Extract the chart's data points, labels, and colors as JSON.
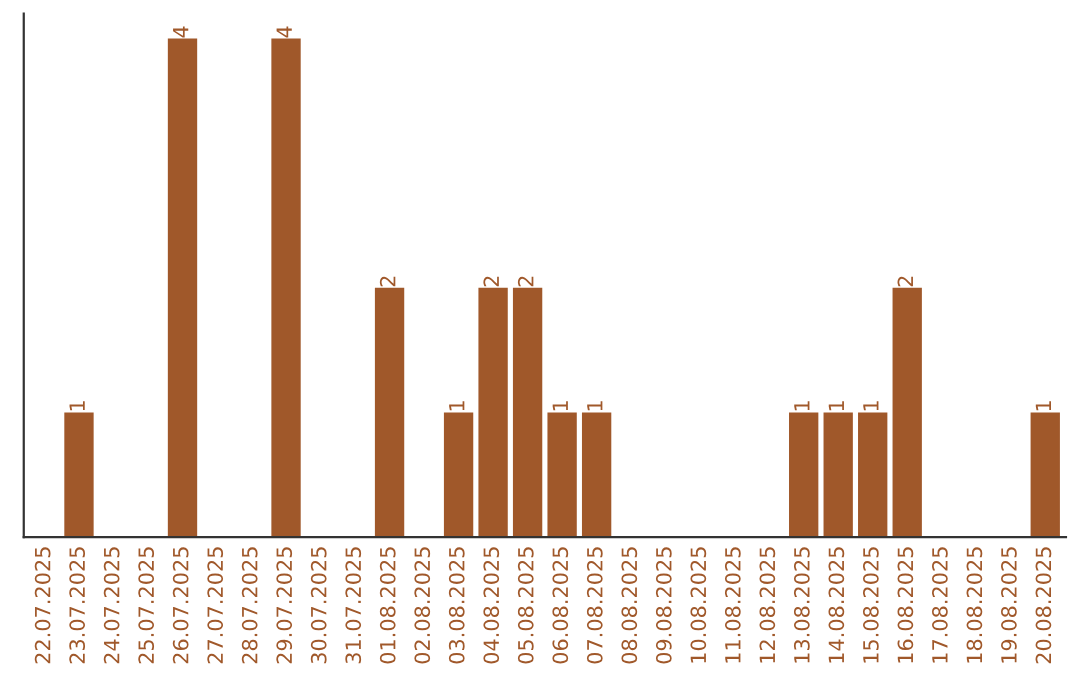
{
  "chart_data": {
    "type": "bar",
    "categories": [
      "22.07.2025",
      "23.07.2025",
      "24.07.2025",
      "25.07.2025",
      "26.07.2025",
      "27.07.2025",
      "28.07.2025",
      "29.07.2025",
      "30.07.2025",
      "31.07.2025",
      "01.08.2025",
      "02.08.2025",
      "03.08.2025",
      "04.08.2025",
      "05.08.2025",
      "06.08.2025",
      "07.08.2025",
      "08.08.2025",
      "09.08.2025",
      "10.08.2025",
      "11.08.2025",
      "12.08.2025",
      "13.08.2025",
      "14.08.2025",
      "15.08.2025",
      "16.08.2025",
      "17.08.2025",
      "18.08.2025",
      "19.08.2025",
      "20.08.2025"
    ],
    "values": [
      0,
      1,
      0,
      0,
      4,
      0,
      0,
      4,
      0,
      0,
      2,
      0,
      1,
      2,
      2,
      1,
      1,
      0,
      0,
      0,
      0,
      0,
      1,
      1,
      1,
      2,
      0,
      0,
      0,
      1
    ],
    "value_labels": [
      null,
      "1",
      null,
      null,
      "4",
      null,
      null,
      "4",
      null,
      null,
      "2",
      null,
      "1",
      "2",
      "2",
      "1",
      "1",
      null,
      null,
      null,
      null,
      null,
      "1",
      "1",
      "1",
      "2",
      null,
      null,
      null,
      "1"
    ],
    "color": "#a0582a",
    "ylim": [
      0,
      4.2
    ],
    "tick_labels": "x",
    "grid": false,
    "legend": false
  }
}
